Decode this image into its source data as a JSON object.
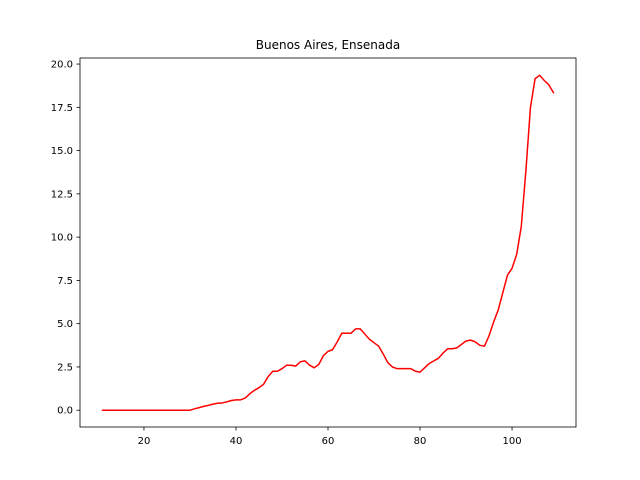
{
  "chart_data": {
    "type": "line",
    "title": "Buenos Aires, Ensenada",
    "xlabel": "",
    "ylabel": "",
    "xlim": [
      6.1,
      113.9
    ],
    "ylim": [
      -0.97,
      20.35
    ],
    "xticks": [
      20,
      40,
      60,
      80,
      100
    ],
    "yticks": [
      0.0,
      2.5,
      5.0,
      7.5,
      10.0,
      12.5,
      15.0,
      17.5,
      20.0
    ],
    "xtick_labels": [
      "20",
      "40",
      "60",
      "80",
      "100"
    ],
    "ytick_labels": [
      "0.0",
      "2.5",
      "5.0",
      "7.5",
      "10.0",
      "12.5",
      "15.0",
      "17.5",
      "20.0"
    ],
    "grid": false,
    "series": [
      {
        "color": "#ff0000",
        "x": [
          11,
          12,
          13,
          14,
          15,
          16,
          17,
          18,
          19,
          20,
          21,
          22,
          23,
          24,
          25,
          26,
          27,
          28,
          29,
          30,
          31,
          32,
          33,
          34,
          35,
          36,
          37,
          38,
          39,
          40,
          41,
          42,
          43,
          44,
          45,
          46,
          47,
          48,
          49,
          50,
          51,
          52,
          53,
          54,
          55,
          56,
          57,
          58,
          59,
          60,
          61,
          62,
          63,
          64,
          65,
          66,
          67,
          68,
          69,
          70,
          71,
          72,
          73,
          74,
          75,
          76,
          77,
          78,
          79,
          80,
          81,
          82,
          83,
          84,
          85,
          86,
          87,
          88,
          89,
          90,
          91,
          92,
          93,
          94,
          95,
          96,
          97,
          98,
          99,
          100,
          101,
          102,
          103,
          104,
          105,
          106,
          107,
          108,
          109
        ],
        "y": [
          0,
          0,
          0,
          0,
          0,
          0,
          0,
          0,
          0,
          0,
          0,
          0,
          0,
          0,
          0,
          0,
          0,
          0,
          0,
          0,
          0.08,
          0.15,
          0.22,
          0.28,
          0.35,
          0.4,
          0.42,
          0.48,
          0.56,
          0.6,
          0.6,
          0.7,
          0.95,
          1.15,
          1.3,
          1.5,
          1.95,
          2.25,
          2.25,
          2.4,
          2.6,
          2.6,
          2.55,
          2.8,
          2.85,
          2.6,
          2.45,
          2.65,
          3.15,
          3.4,
          3.5,
          3.95,
          4.45,
          4.45,
          4.45,
          4.7,
          4.7,
          4.4,
          4.1,
          3.9,
          3.7,
          3.25,
          2.75,
          2.5,
          2.4,
          2.4,
          2.4,
          2.4,
          2.25,
          2.2,
          2.45,
          2.7,
          2.85,
          3.0,
          3.3,
          3.55,
          3.55,
          3.6,
          3.8,
          4.0,
          4.05,
          3.95,
          3.75,
          3.7,
          4.3,
          5.1,
          5.8,
          6.8,
          7.8,
          8.2,
          9.0,
          10.6,
          13.8,
          17.5,
          19.15,
          19.35,
          19.05,
          18.8,
          18.35
        ]
      }
    ]
  }
}
